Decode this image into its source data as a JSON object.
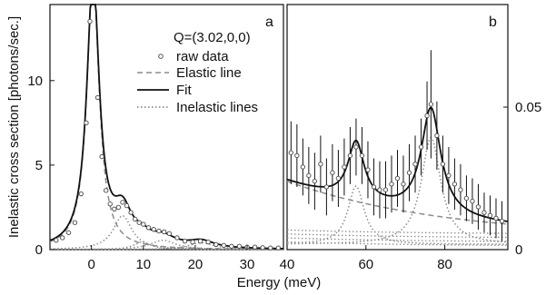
{
  "chart_data": [
    {
      "panel_label": "a",
      "type": "line",
      "ylabel": "Inelastic cross section [photons/sec.]",
      "xlabel": "",
      "xlim": [
        -8,
        37
      ],
      "ylim": [
        0,
        14.5
      ],
      "x_ticks": [
        0,
        10,
        20,
        30
      ],
      "x_tick_labels": [
        "0",
        "10",
        "20",
        "30"
      ],
      "y_ticks": [
        0,
        5,
        10
      ],
      "y_tick_labels": [
        "0",
        "5",
        "10"
      ],
      "grid": false,
      "legend": {
        "placement": "top-right",
        "title": "Q=(3.02,0,0)",
        "entries": [
          {
            "label": "raw data",
            "style": "markers",
            "marker": "circle",
            "color": "#555555"
          },
          {
            "label": "Elastic line",
            "style": "dashed",
            "color": "#8c8c8c"
          },
          {
            "label": "Fit",
            "style": "solid",
            "color": "#111111"
          },
          {
            "label": "Inelastic lines",
            "style": "dotted",
            "color": "#8c8c8c"
          }
        ]
      },
      "model": {
        "elastic": {
          "center": 0.3,
          "amplitude": 16.0,
          "halfwidth": 1.45
        },
        "inelastic_peaks": [
          {
            "center": 6.0,
            "amplitude": 2.0,
            "halfwidth": 2.2
          },
          {
            "center": 9.8,
            "amplitude": 0.45,
            "halfwidth": 2.0
          },
          {
            "center": 13.8,
            "amplitude": 0.55,
            "halfwidth": 3.0
          },
          {
            "center": 21.2,
            "amplitude": 0.4,
            "halfwidth": 3.0
          }
        ]
      },
      "series": [
        {
          "name": "raw data",
          "x": [
            -6.8,
            -5.6,
            -4.4,
            -3.2,
            -2.0,
            -1.0,
            -0.3,
            1.2,
            2.0,
            2.8,
            3.6,
            4.4,
            5.2,
            6.0,
            6.8,
            7.6,
            8.4,
            9.2,
            10.0,
            11.0,
            12.0,
            13.0,
            14.0,
            15.0,
            16.5,
            18.0,
            19.5,
            21.0,
            22.5,
            24.0,
            25.5,
            27.0,
            28.5,
            30.0,
            31.5,
            33.0,
            34.5,
            36.0
          ],
          "y": [
            0.55,
            0.7,
            1.0,
            1.6,
            3.3,
            7.5,
            13.5,
            9.0,
            5.5,
            3.5,
            2.7,
            2.4,
            2.5,
            2.8,
            2.6,
            2.2,
            1.8,
            1.6,
            1.5,
            1.3,
            1.2,
            1.1,
            1.05,
            0.95,
            0.7,
            0.5,
            0.45,
            0.5,
            0.45,
            0.3,
            0.25,
            0.2,
            0.2,
            0.15,
            0.15,
            0.12,
            0.1,
            0.1
          ]
        }
      ]
    },
    {
      "panel_label": "b",
      "type": "line",
      "ylabel": "",
      "xlabel": "",
      "xlim": [
        40,
        96
      ],
      "ylim": [
        0,
        0.086
      ],
      "x_ticks": [
        40,
        60,
        80
      ],
      "x_tick_labels": [
        "40",
        "60",
        "80"
      ],
      "y_ticks": [
        0,
        0.05
      ],
      "y_tick_labels": [
        "0",
        "0.05"
      ],
      "y_axis_side": "right",
      "grid": false,
      "model": {
        "background": {
          "offset": 0.004
        },
        "elastic_tail": {
          "amplitude": 0.02,
          "decay": 40
        },
        "inelastic_peaks": [
          {
            "center": 57.5,
            "amplitude": 0.0205,
            "halfwidth": 2.5
          },
          {
            "center": 76.5,
            "amplitude": 0.0375,
            "halfwidth": 3.0
          }
        ]
      },
      "series": [
        {
          "name": "raw data",
          "x": [
            41.0,
            42.5,
            44.0,
            45.5,
            47.0,
            48.5,
            50.0,
            51.5,
            53.0,
            54.5,
            56.0,
            57.5,
            59.0,
            60.5,
            62.0,
            63.5,
            65.0,
            66.5,
            68.0,
            69.5,
            71.0,
            72.5,
            74.0,
            75.5,
            76.5,
            78.0,
            79.5,
            81.0,
            82.5,
            84.0,
            85.5,
            87.0,
            88.5,
            90.0,
            91.5,
            93.0,
            94.5
          ],
          "y": [
            0.034,
            0.033,
            0.029,
            0.026,
            0.024,
            0.03,
            0.022,
            0.027,
            0.025,
            0.029,
            0.033,
            0.036,
            0.033,
            0.028,
            0.022,
            0.021,
            0.021,
            0.023,
            0.025,
            0.023,
            0.027,
            0.03,
            0.036,
            0.047,
            0.051,
            0.04,
            0.03,
            0.026,
            0.023,
            0.021,
            0.018,
            0.017,
            0.015,
            0.013,
            0.012,
            0.011,
            0.01
          ],
          "err": [
            0.011,
            0.011,
            0.01,
            0.01,
            0.01,
            0.01,
            0.01,
            0.01,
            0.01,
            0.01,
            0.01,
            0.01,
            0.01,
            0.01,
            0.01,
            0.01,
            0.01,
            0.01,
            0.01,
            0.01,
            0.01,
            0.01,
            0.01,
            0.012,
            0.019,
            0.012,
            0.01,
            0.01,
            0.009,
            0.009,
            0.008,
            0.008,
            0.008,
            0.007,
            0.007,
            0.007,
            0.007
          ]
        }
      ]
    }
  ],
  "shared_xlabel": "Energy (meV)",
  "colors": {
    "raw_data": "#555555",
    "fit": "#111111",
    "elastic": "#8c8c8c",
    "inelastic": "#8c8c8c",
    "axis": "#111111"
  }
}
